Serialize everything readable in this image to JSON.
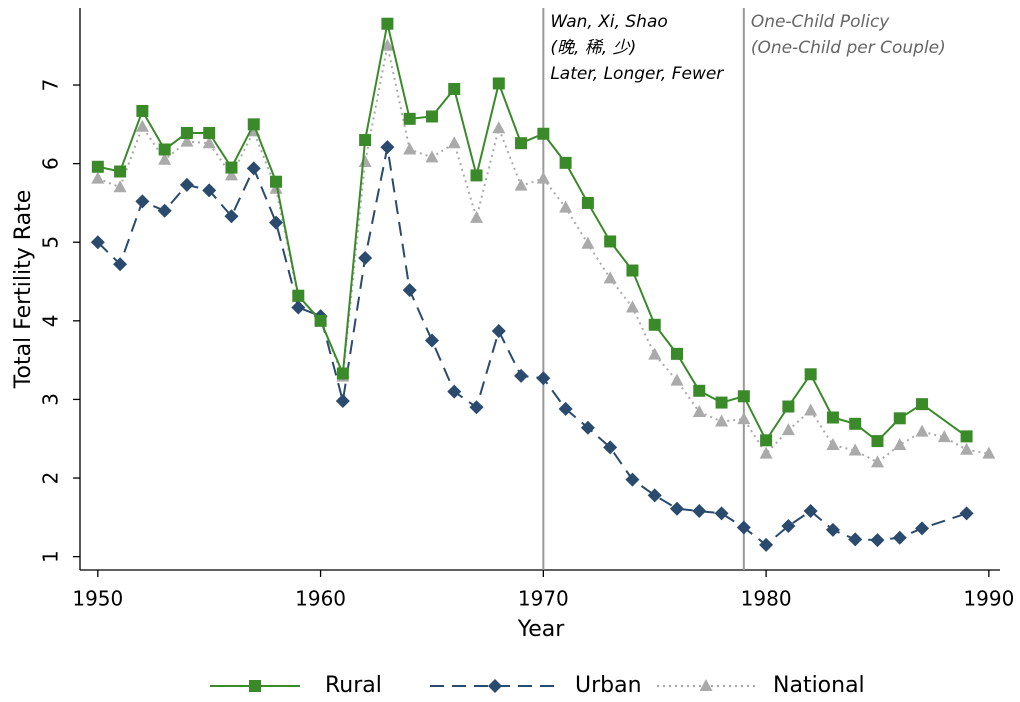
{
  "chart_data": {
    "type": "line",
    "xlabel": "Year",
    "ylabel": "Total Fertility Rate",
    "xlim": [
      1949.2,
      1990.5
    ],
    "ylim": [
      0.83,
      7.98
    ],
    "xticks": [
      1950,
      1960,
      1970,
      1980,
      1990
    ],
    "yticks": [
      1,
      2,
      3,
      4,
      5,
      6,
      7
    ],
    "series": [
      {
        "name": "Rural",
        "color": "#3a8a2a",
        "line_style": "solid",
        "marker": "square",
        "x": [
          1950,
          1951,
          1952,
          1953,
          1954,
          1955,
          1956,
          1957,
          1958,
          1959,
          1960,
          1961,
          1962,
          1963,
          1964,
          1965,
          1966,
          1967,
          1968,
          1969,
          1970,
          1971,
          1972,
          1973,
          1974,
          1975,
          1976,
          1977,
          1978,
          1979,
          1980,
          1981,
          1982,
          1983,
          1984,
          1985,
          1986,
          1987,
          1989
        ],
        "values": [
          5.96,
          5.9,
          6.67,
          6.18,
          6.39,
          6.39,
          5.95,
          6.5,
          5.77,
          4.32,
          4.0,
          3.33,
          6.3,
          7.78,
          6.57,
          6.6,
          6.95,
          5.85,
          7.02,
          6.26,
          6.38,
          6.01,
          5.5,
          5.01,
          4.64,
          3.95,
          3.58,
          3.11,
          2.96,
          3.04,
          2.48,
          2.91,
          3.32,
          2.77,
          2.69,
          2.47,
          2.76,
          2.94,
          2.53
        ]
      },
      {
        "name": "Urban",
        "color": "#2a4a6e",
        "line_style": "dashed",
        "marker": "diamond",
        "x": [
          1950,
          1951,
          1952,
          1953,
          1954,
          1955,
          1956,
          1957,
          1958,
          1959,
          1960,
          1961,
          1962,
          1963,
          1964,
          1965,
          1966,
          1967,
          1968,
          1969,
          1970,
          1971,
          1972,
          1973,
          1974,
          1975,
          1976,
          1977,
          1978,
          1979,
          1980,
          1981,
          1982,
          1983,
          1984,
          1985,
          1986,
          1987,
          1989
        ],
        "values": [
          5.0,
          4.72,
          5.52,
          5.4,
          5.73,
          5.66,
          5.33,
          5.94,
          5.25,
          4.17,
          4.06,
          2.98,
          4.8,
          6.21,
          4.39,
          3.75,
          3.1,
          2.9,
          3.87,
          3.3,
          3.27,
          2.88,
          2.64,
          2.39,
          1.98,
          1.78,
          1.61,
          1.58,
          1.55,
          1.37,
          1.15,
          1.39,
          1.58,
          1.34,
          1.22,
          1.21,
          1.24,
          1.36,
          1.55
        ]
      },
      {
        "name": "National",
        "color": "#aaaaaa",
        "line_style": "dotted",
        "marker": "triangle",
        "x": [
          1950,
          1951,
          1952,
          1953,
          1954,
          1955,
          1956,
          1957,
          1958,
          1959,
          1960,
          1961,
          1962,
          1963,
          1964,
          1965,
          1966,
          1967,
          1968,
          1969,
          1970,
          1971,
          1972,
          1973,
          1974,
          1975,
          1976,
          1977,
          1978,
          1979,
          1980,
          1981,
          1982,
          1983,
          1984,
          1985,
          1986,
          1987,
          1988,
          1989,
          1990
        ],
        "values": [
          5.81,
          5.7,
          6.47,
          6.05,
          6.28,
          6.26,
          5.85,
          6.41,
          5.68,
          4.3,
          4.02,
          3.29,
          6.02,
          7.5,
          6.18,
          6.08,
          6.26,
          5.31,
          6.45,
          5.72,
          5.81,
          5.44,
          4.98,
          4.54,
          4.17,
          3.57,
          3.24,
          2.84,
          2.72,
          2.75,
          2.31,
          2.61,
          2.86,
          2.42,
          2.35,
          2.2,
          2.42,
          2.59,
          2.52,
          2.36,
          2.31
        ]
      }
    ],
    "vlines": [
      {
        "x": 1970,
        "color": "#000000",
        "lines": [
          "Wan, Xi, Shao",
          "(晚, 稀, 少)",
          "Later, Longer, Fewer"
        ]
      },
      {
        "x": 1979,
        "color": "#666666",
        "lines": [
          "One-Child Policy",
          "(One-Child per Couple)"
        ]
      }
    ],
    "legend": "bottom"
  }
}
